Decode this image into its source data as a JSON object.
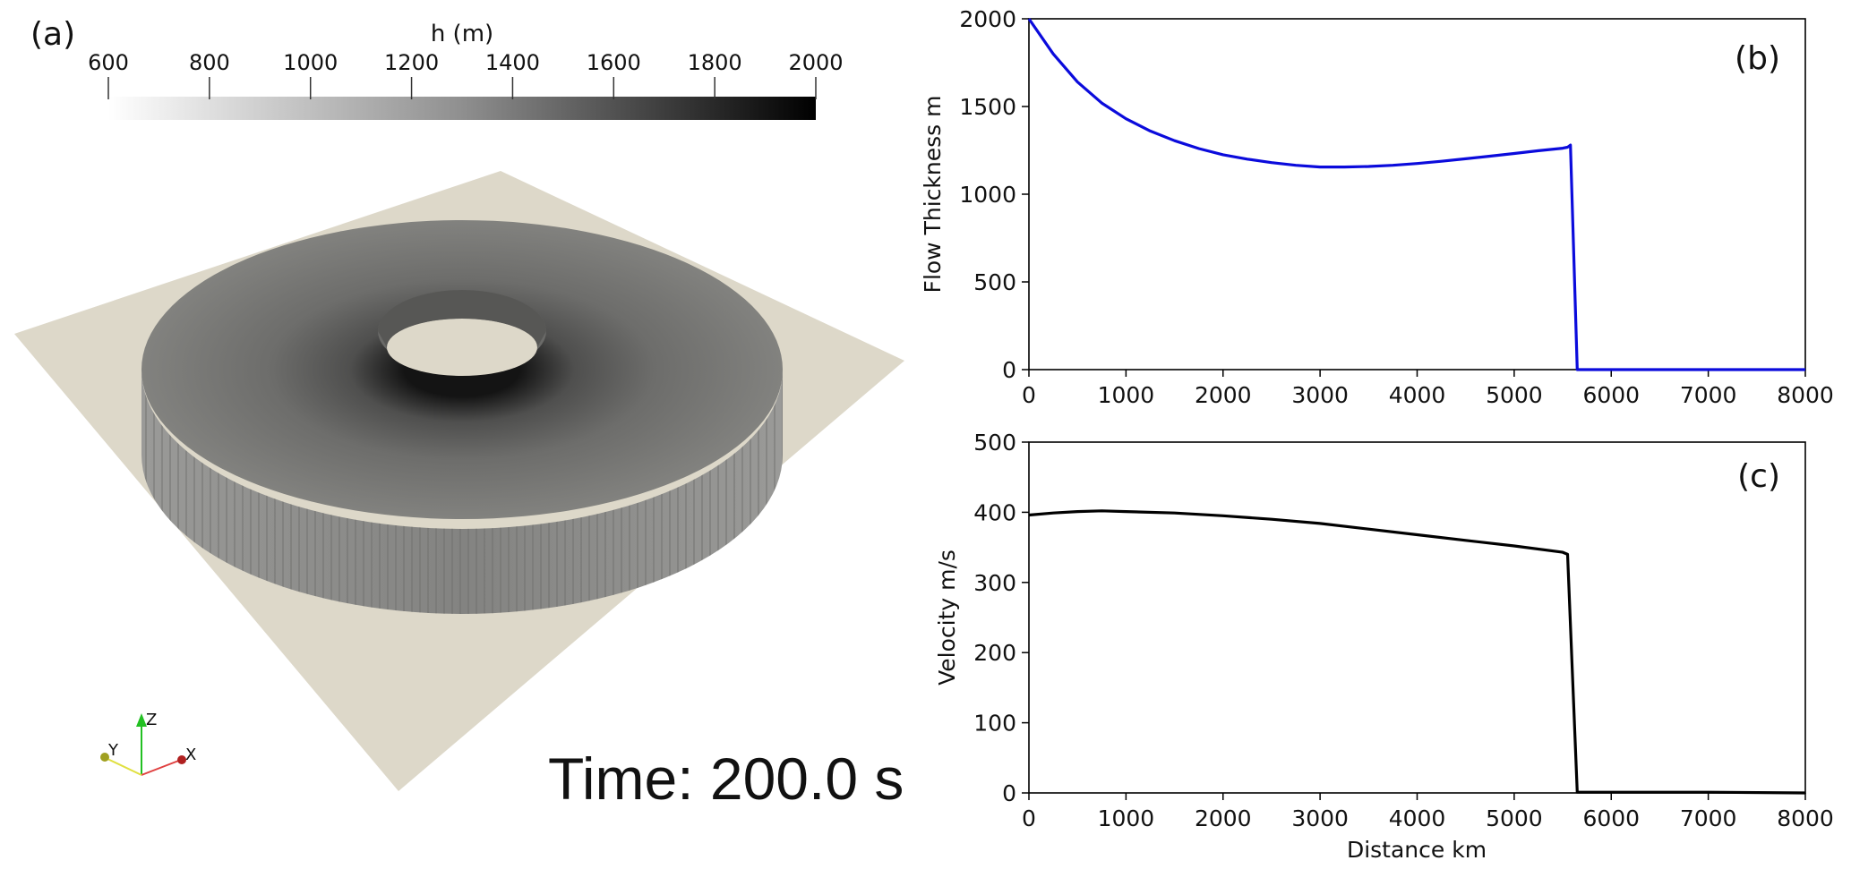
{
  "colors": {
    "thickness_line": "#0b0bdc",
    "velocity_line": "#000000",
    "ground_plane": "#ddd8c9",
    "torus_top": "#7a7a78",
    "torus_side": "#8e8e8c"
  },
  "panel_a": {
    "label": "(a)",
    "colorbar": {
      "title": "h (m)",
      "ticks": [
        "600",
        "800",
        "1000",
        "1200",
        "1400",
        "1600",
        "1800",
        "2000"
      ],
      "range": [
        600,
        2000
      ],
      "colormap": "white-to-black"
    },
    "time_text": "Time: 200.0 s",
    "axes_triad": {
      "x": "X",
      "y": "Y",
      "z": "Z"
    }
  },
  "chart_data": [
    {
      "type": "line",
      "panel_label": "(b)",
      "title": "",
      "xlabel": "",
      "ylabel": "Flow Thickness m",
      "xlim": [
        0,
        8000
      ],
      "ylim": [
        0,
        2000
      ],
      "xticks": [
        "0",
        "1000",
        "2000",
        "3000",
        "4000",
        "5000",
        "6000",
        "7000",
        "8000"
      ],
      "yticks": [
        "0",
        "500",
        "1000",
        "1500",
        "2000"
      ],
      "grid": false,
      "series": [
        {
          "x": [
            0,
            250,
            500,
            750,
            1000,
            1250,
            1500,
            1750,
            2000,
            2250,
            2500,
            2750,
            3000,
            3250,
            3500,
            3750,
            4000,
            4250,
            4500,
            4750,
            5000,
            5250,
            5500,
            5550,
            5580,
            5650,
            6000,
            7000,
            8000
          ],
          "y": [
            2000,
            1800,
            1640,
            1520,
            1430,
            1360,
            1305,
            1260,
            1225,
            1200,
            1180,
            1165,
            1155,
            1155,
            1158,
            1165,
            1175,
            1188,
            1202,
            1217,
            1232,
            1248,
            1262,
            1268,
            1280,
            0,
            0,
            0,
            0
          ]
        }
      ]
    },
    {
      "type": "line",
      "panel_label": "(c)",
      "title": "",
      "xlabel": "Distance km",
      "ylabel": "Velocity m/s",
      "xlim": [
        0,
        8000
      ],
      "ylim": [
        0,
        500
      ],
      "xticks": [
        "0",
        "1000",
        "2000",
        "3000",
        "4000",
        "5000",
        "6000",
        "7000",
        "8000"
      ],
      "yticks": [
        "0",
        "100",
        "200",
        "300",
        "400",
        "500"
      ],
      "grid": false,
      "series": [
        {
          "x": [
            0,
            250,
            500,
            750,
            1000,
            1500,
            2000,
            2500,
            3000,
            3500,
            4000,
            4500,
            5000,
            5500,
            5550,
            5650,
            6000,
            7000,
            8000
          ],
          "y": [
            396,
            399,
            401,
            402,
            401,
            399,
            395,
            390,
            384,
            376,
            368,
            360,
            352,
            343,
            340,
            1,
            1,
            1,
            0
          ]
        }
      ]
    }
  ]
}
